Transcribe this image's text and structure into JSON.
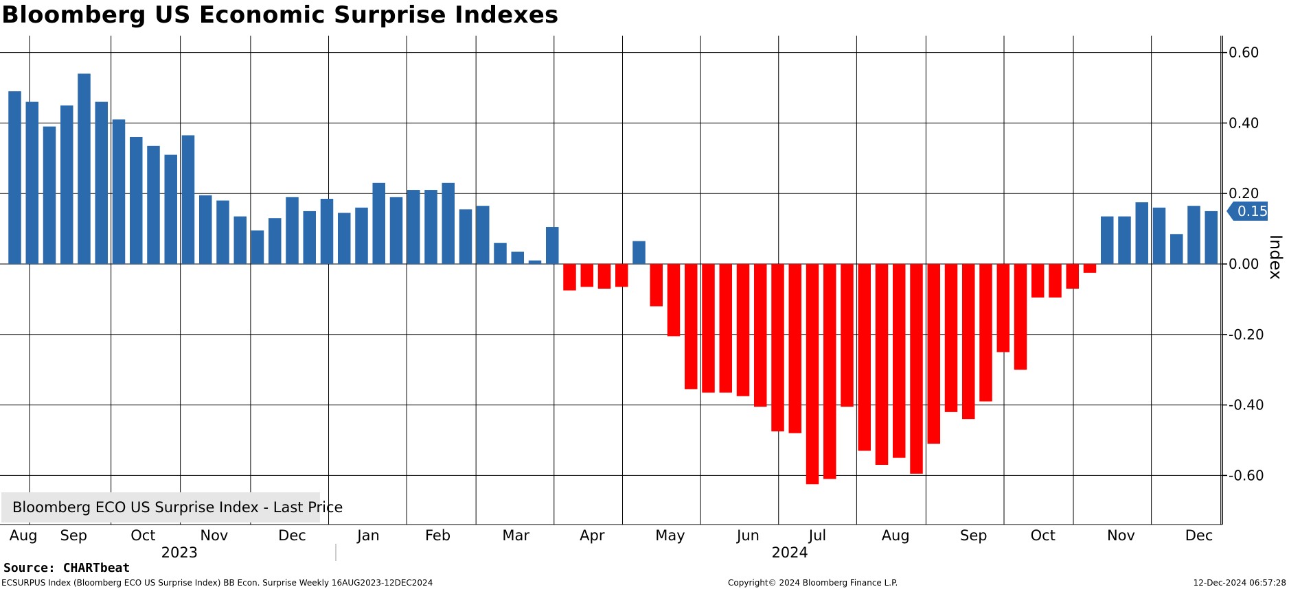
{
  "title": "Bloomberg US Economic Surprise Indexes",
  "legend": {
    "label": "Bloomberg ECO US Surprise Index - Last Price"
  },
  "last_value_label": "0.15",
  "footer": {
    "source": "Source: CHARTbeat",
    "ticker": "ECSURPUS Index (Bloomberg ECO US Surprise Index) BB Econ. Surprise  Weekly 16AUG2023-12DEC2024",
    "copyright": "Copyright© 2024 Bloomberg Finance L.P.",
    "timestamp": "12-Dec-2024 06:57:28"
  },
  "colors": {
    "positive": "#2a6aad",
    "negative": "#ff0000",
    "grid": "#000000",
    "legend_bg": "#e6e6e6"
  },
  "chart_data": {
    "type": "bar",
    "title": "Bloomberg US Economic Surprise Indexes",
    "ylabel": "Index",
    "ylim": [
      -0.74,
      0.65
    ],
    "yticks": [
      0.6,
      0.4,
      0.2,
      0.0,
      -0.2,
      -0.4,
      -0.6
    ],
    "ytick_labels": [
      "0.60",
      "0.40",
      "0.20",
      "0.00",
      "-0.20",
      "-0.40",
      "-0.60"
    ],
    "x_month_labels": [
      "Aug",
      "Sep",
      "Oct",
      "Nov",
      "Dec",
      "Jan",
      "Feb",
      "Mar",
      "Apr",
      "May",
      "Jun",
      "Jul",
      "Aug",
      "Sep",
      "Oct",
      "Nov",
      "Dec"
    ],
    "x_month_week_index": [
      0.5,
      3.4,
      7.4,
      11.5,
      16.0,
      20.4,
      24.4,
      28.9,
      33.3,
      37.8,
      42.3,
      46.3,
      50.8,
      55.3,
      59.3,
      63.8,
      68.3
    ],
    "x_year_labels": [
      "2023",
      "2024"
    ],
    "x_year_week_index": [
      9.5,
      44.7
    ],
    "grid_week_boundaries": [
      0.85,
      5.55,
      9.55,
      13.6,
      18.1,
      22.6,
      26.6,
      31.1,
      35.05,
      39.55,
      44.05,
      48.55,
      52.55,
      57.05,
      61.05,
      65.55,
      69.55
    ],
    "series": [
      {
        "name": "Bloomberg ECO US Surprise Index - Last Price",
        "values": [
          0.49,
          0.46,
          0.39,
          0.45,
          0.54,
          0.46,
          0.41,
          0.36,
          0.335,
          0.31,
          0.365,
          0.195,
          0.18,
          0.135,
          0.095,
          0.13,
          0.19,
          0.15,
          0.185,
          0.145,
          0.16,
          0.23,
          0.19,
          0.21,
          0.21,
          0.23,
          0.155,
          0.165,
          0.06,
          0.035,
          0.01,
          0.105,
          -0.075,
          -0.065,
          -0.07,
          -0.065,
          0.065,
          -0.12,
          -0.205,
          -0.355,
          -0.365,
          -0.365,
          -0.375,
          -0.405,
          -0.475,
          -0.48,
          -0.625,
          -0.61,
          -0.405,
          -0.53,
          -0.57,
          -0.55,
          -0.595,
          -0.51,
          -0.42,
          -0.44,
          -0.39,
          -0.25,
          -0.3,
          -0.095,
          -0.095,
          -0.07,
          -0.025,
          0.135,
          0.135,
          0.175,
          0.16,
          0.085,
          0.165,
          0.15
        ]
      }
    ]
  }
}
